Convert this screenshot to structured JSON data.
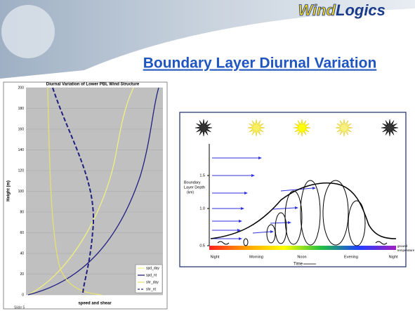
{
  "header": {
    "logo_part1": "Wind",
    "logo_part2": "Logics",
    "title": "Boundary Layer Diurnal Variation"
  },
  "left_chart": {
    "title": "Diurnal Variation of Lower PBL Wind Structure",
    "y_label": "Height (m)",
    "x_label": "speed and shear",
    "yticks": [
      0,
      20,
      40,
      60,
      80,
      100,
      120,
      140,
      160,
      180,
      200
    ],
    "legend": [
      "spd_day",
      "spd_nt",
      "shr_day",
      "shr_nt"
    ]
  },
  "diagram": {
    "y_label_1": "Boundary",
    "y_label_2": "Layer Depth",
    "y_label_3": "(km)",
    "yticks": [
      "0.5",
      "1.0",
      "1.5"
    ],
    "times": [
      "Night",
      "Morning",
      "Noon",
      "Evening",
      "Night"
    ],
    "x_label": "Time",
    "ground_label_1": "ground",
    "ground_label_2": "temperature"
  },
  "footer": "Slide 5"
}
